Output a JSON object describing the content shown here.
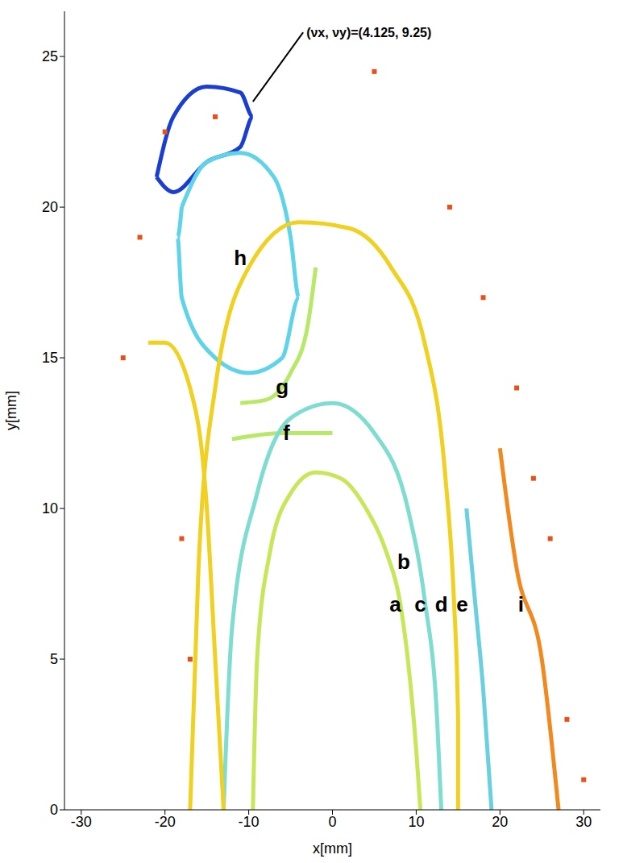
{
  "chart_data": {
    "type": "scatter",
    "xlabel": "x[mm]",
    "ylabel": "y[mm]",
    "xlim": [
      -32,
      32
    ],
    "xticks": [
      -30,
      -20,
      -10,
      0,
      10,
      20,
      30
    ],
    "ylim": [
      0,
      26.5
    ],
    "yticks": [
      0,
      5,
      10,
      15,
      20,
      25
    ],
    "series": [
      {
        "type": "line",
        "color": "#1a3fd0",
        "x": [
          -21,
          -19,
          -15,
          -11,
          -9.5,
          -11,
          -15,
          -19,
          -21
        ],
        "y": [
          21,
          23,
          24,
          23.8,
          23,
          22,
          21.5,
          20.5,
          21
        ]
      },
      {
        "type": "line",
        "color": "#5fd3e8",
        "x": [
          -18,
          -15,
          -11,
          -7,
          -5,
          -4,
          -6,
          -10,
          -14,
          -18,
          -18.5,
          -18
        ],
        "y": [
          20,
          21.5,
          21.8,
          21,
          19,
          17,
          15,
          14.5,
          15,
          17,
          19,
          20
        ]
      },
      {
        "type": "line",
        "color": "#b8e868",
        "x": [
          -11,
          -8,
          -5,
          -3,
          -2
        ],
        "y": [
          13.5,
          13.6,
          14.5,
          16,
          18
        ]
      },
      {
        "type": "line",
        "color": "#b8e868",
        "x": [
          -12,
          -6,
          0
        ],
        "y": [
          12.3,
          12.5,
          12.5
        ]
      },
      {
        "type": "line",
        "color": "#c8e65a",
        "x": [
          -9.5,
          -9,
          -7.5,
          -5,
          -2,
          1,
          4,
          6.5,
          8,
          9,
          10,
          10.5
        ],
        "y": [
          0,
          5,
          8.5,
          10.5,
          11.2,
          11,
          10,
          8.5,
          7,
          5,
          2,
          0
        ]
      },
      {
        "type": "line",
        "color": "#7fdcd0",
        "x": [
          -13,
          -12,
          -9,
          -5,
          0,
          5,
          9,
          11,
          12.5,
          13
        ],
        "y": [
          0,
          6,
          10.5,
          13,
          13.5,
          12.5,
          10,
          7,
          3,
          0
        ]
      },
      {
        "type": "line",
        "color": "#f0d020",
        "x": [
          -17,
          -16,
          -14,
          -10,
          -4,
          2,
          7,
          11,
          13.5,
          14.5,
          15,
          15
        ],
        "y": [
          0,
          8,
          14,
          18,
          19.5,
          19.3,
          18,
          15.5,
          11,
          7,
          3,
          0
        ]
      },
      {
        "type": "line",
        "color": "#6ad0e0",
        "x": [
          16,
          17,
          18,
          19
        ],
        "y": [
          10,
          7,
          4,
          0
        ]
      },
      {
        "type": "line",
        "color": "#f0d020",
        "x": [
          -22,
          -20,
          -17,
          -15,
          -14,
          -13
        ],
        "y": [
          15.5,
          15.5,
          14,
          10,
          5,
          0
        ]
      },
      {
        "type": "line",
        "color": "#f08a20",
        "x": [
          20,
          22,
          25,
          27
        ],
        "y": [
          12,
          8,
          5,
          0
        ]
      },
      {
        "type": "scatter",
        "color": "#e8501a",
        "x": [
          22,
          24,
          26,
          28,
          -25,
          -20,
          -14,
          -18,
          -17,
          5,
          -23,
          30,
          14,
          18
        ],
        "y": [
          14,
          11,
          9,
          3,
          15,
          22.5,
          23,
          9,
          5,
          24.5,
          19,
          1,
          20,
          17
        ]
      }
    ],
    "annotations": [
      {
        "text": "a",
        "x": 7.5,
        "y": 6.8
      },
      {
        "text": "b",
        "x": 8.5,
        "y": 8.2
      },
      {
        "text": "c",
        "x": 10.5,
        "y": 6.8
      },
      {
        "text": "d",
        "x": 13,
        "y": 6.8
      },
      {
        "text": "e",
        "x": 15.5,
        "y": 6.8
      },
      {
        "text": "f",
        "x": -5.5,
        "y": 12.5
      },
      {
        "text": "g",
        "x": -6,
        "y": 14
      },
      {
        "text": "h",
        "x": -11,
        "y": 18.3
      },
      {
        "text": "i",
        "x": 22.5,
        "y": 6.8
      },
      {
        "text": "(νx, νy)=(4.125, 9.25)",
        "x": -3.5,
        "y": 25.8,
        "arrow_to": [
          -9.5,
          23.5
        ]
      }
    ]
  }
}
